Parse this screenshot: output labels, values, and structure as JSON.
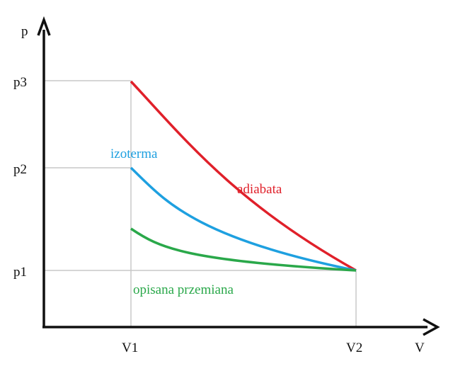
{
  "chart_data": {
    "type": "line",
    "title": "",
    "xlabel": "V",
    "ylabel": "p",
    "x_ticks": [
      "V1",
      "V2"
    ],
    "y_ticks": [
      "p1",
      "p2",
      "p3"
    ],
    "grid": false,
    "series": [
      {
        "name": "adiabata",
        "color": "#e0202a",
        "shape": "convex-decreasing",
        "from": [
          "V1",
          "p3"
        ],
        "to": [
          "V2",
          "p1"
        ]
      },
      {
        "name": "izoterma",
        "color": "#1ea0e0",
        "shape": "convex-decreasing",
        "from": [
          "V1",
          "p2"
        ],
        "to": [
          "V2",
          "p1"
        ]
      },
      {
        "name": "opisana przemiana",
        "color": "#2aa84a",
        "shape": "convex-decreasing",
        "from": [
          "V1",
          "below p2, above p1"
        ],
        "to": [
          "V2",
          "p1"
        ]
      }
    ],
    "guide_color": "#c8c8c8",
    "axis_color": "#111111"
  }
}
